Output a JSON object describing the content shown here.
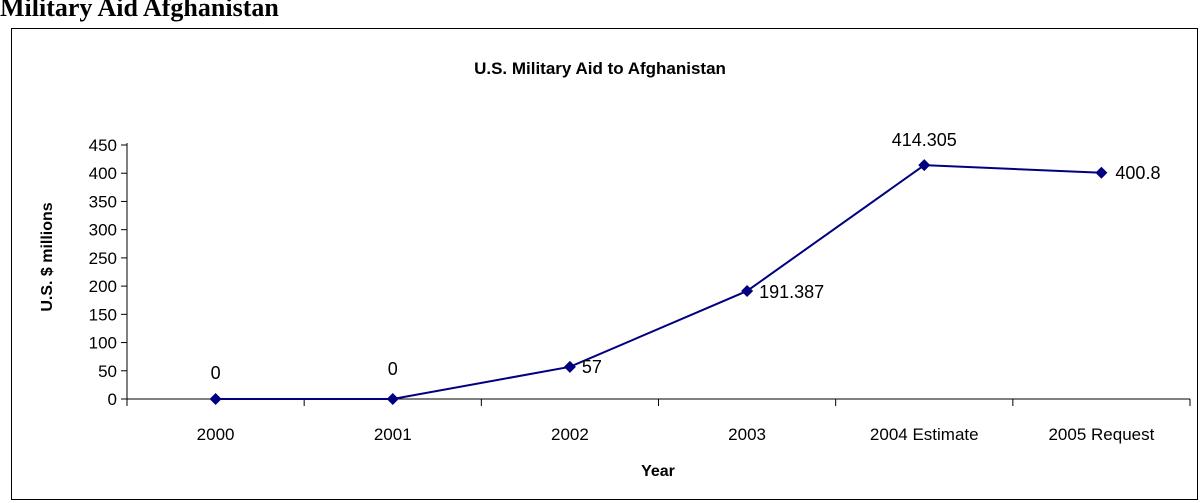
{
  "page": {
    "heading_fragment": "Military Aid Afghanistan"
  },
  "chart_data": {
    "type": "line",
    "title": "U.S. Military Aid to Afghanistan",
    "xlabel": "Year",
    "ylabel": "U.S. $ millions",
    "categories": [
      "2000",
      "2001",
      "2002",
      "2003",
      "2004 Estimate",
      "2005 Request"
    ],
    "series": [
      {
        "values": [
          0,
          0,
          57,
          191.387,
          414.305,
          400.8
        ],
        "data_labels": [
          "0",
          "0",
          "57",
          "191.387",
          "414.305",
          "400.8"
        ],
        "color": "#000080"
      }
    ],
    "ylim": [
      0,
      450
    ],
    "y_ticks": [
      "0",
      "50",
      "100",
      "150",
      "200",
      "250",
      "300",
      "350",
      "400",
      "450"
    ],
    "grid": false,
    "legend": "none"
  }
}
